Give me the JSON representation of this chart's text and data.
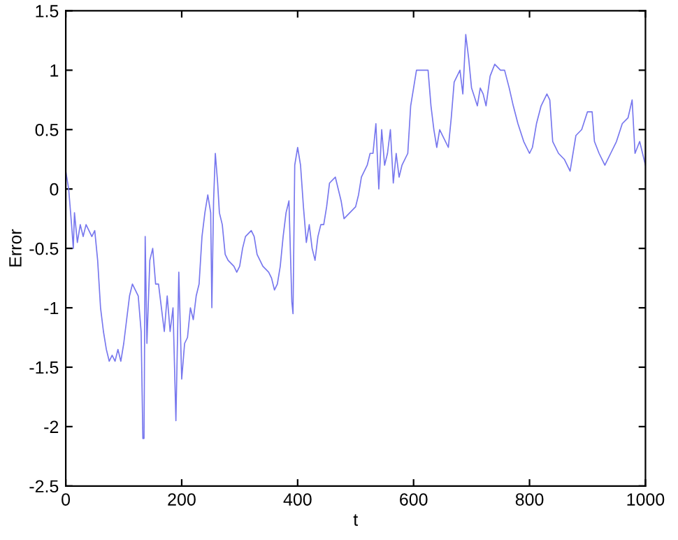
{
  "chart_data": {
    "type": "line",
    "xlabel": "t",
    "ylabel": "Error",
    "xlim": [
      0,
      1000
    ],
    "ylim": [
      -2.5,
      1.5
    ],
    "xticks": [
      0,
      200,
      400,
      600,
      800,
      1000
    ],
    "yticks": [
      -2.5,
      -2,
      -1.5,
      -1,
      -0.5,
      0,
      0.5,
      1,
      1.5
    ],
    "grid": false,
    "legend": false,
    "marker": "none",
    "line_style": "solid",
    "series": [
      {
        "color": "#7777ee",
        "x": [
          0,
          5,
          10,
          13,
          15,
          20,
          25,
          30,
          35,
          45,
          50,
          55,
          60,
          65,
          70,
          75,
          80,
          85,
          90,
          95,
          100,
          105,
          110,
          115,
          120,
          125,
          130,
          133,
          135,
          137,
          140,
          145,
          150,
          155,
          160,
          165,
          170,
          175,
          180,
          185,
          190,
          195,
          200,
          205,
          210,
          215,
          220,
          225,
          230,
          235,
          240,
          245,
          250,
          252,
          255,
          258,
          262,
          265,
          270,
          275,
          280,
          290,
          295,
          300,
          305,
          310,
          320,
          325,
          330,
          340,
          350,
          355,
          360,
          365,
          370,
          375,
          380,
          385,
          390,
          392,
          395,
          400,
          405,
          410,
          415,
          420,
          425,
          430,
          435,
          440,
          445,
          450,
          455,
          465,
          470,
          475,
          480,
          490,
          500,
          505,
          510,
          520,
          525,
          530,
          535,
          540,
          545,
          550,
          555,
          560,
          565,
          570,
          575,
          580,
          590,
          595,
          600,
          605,
          615,
          625,
          630,
          635,
          640,
          645,
          650,
          660,
          665,
          670,
          680,
          685,
          690,
          695,
          700,
          710,
          715,
          720,
          725,
          732,
          740,
          750,
          757,
          765,
          772,
          780,
          790,
          800,
          805,
          812,
          820,
          830,
          835,
          840,
          850,
          860,
          870,
          880,
          890,
          900,
          908,
          912,
          920,
          930,
          940,
          950,
          960,
          970,
          977,
          982,
          990,
          1000
        ],
        "values": [
          0.15,
          0.0,
          -0.3,
          -0.5,
          -0.2,
          -0.45,
          -0.3,
          -0.4,
          -0.3,
          -0.4,
          -0.35,
          -0.6,
          -1.0,
          -1.2,
          -1.35,
          -1.45,
          -1.4,
          -1.45,
          -1.35,
          -1.45,
          -1.3,
          -1.1,
          -0.9,
          -0.8,
          -0.85,
          -0.9,
          -1.2,
          -2.1,
          -2.1,
          -0.4,
          -1.3,
          -0.6,
          -0.5,
          -0.8,
          -0.8,
          -1.0,
          -1.2,
          -0.9,
          -1.2,
          -1.0,
          -1.95,
          -0.7,
          -1.6,
          -1.3,
          -1.25,
          -1.0,
          -1.1,
          -0.9,
          -0.8,
          -0.4,
          -0.2,
          -0.05,
          -0.2,
          -1.0,
          -0.1,
          0.3,
          0.05,
          -0.2,
          -0.3,
          -0.55,
          -0.6,
          -0.65,
          -0.7,
          -0.65,
          -0.5,
          -0.4,
          -0.35,
          -0.4,
          -0.55,
          -0.65,
          -0.7,
          -0.75,
          -0.85,
          -0.8,
          -0.65,
          -0.4,
          -0.2,
          -0.1,
          -0.95,
          -1.05,
          0.2,
          0.35,
          0.2,
          -0.15,
          -0.45,
          -0.3,
          -0.5,
          -0.6,
          -0.4,
          -0.3,
          -0.3,
          -0.15,
          0.05,
          0.1,
          0.0,
          -0.1,
          -0.25,
          -0.2,
          -0.15,
          -0.05,
          0.1,
          0.2,
          0.3,
          0.3,
          0.55,
          0.0,
          0.5,
          0.2,
          0.3,
          0.5,
          0.05,
          0.3,
          0.1,
          0.2,
          0.3,
          0.7,
          0.85,
          1.0,
          1.0,
          1.0,
          0.7,
          0.5,
          0.35,
          0.5,
          0.45,
          0.35,
          0.6,
          0.9,
          1.0,
          0.8,
          1.3,
          1.1,
          0.85,
          0.7,
          0.85,
          0.8,
          0.7,
          0.95,
          1.05,
          1.0,
          1.0,
          0.85,
          0.7,
          0.55,
          0.4,
          0.3,
          0.35,
          0.55,
          0.7,
          0.8,
          0.75,
          0.4,
          0.3,
          0.25,
          0.15,
          0.45,
          0.5,
          0.65,
          0.65,
          0.4,
          0.3,
          0.2,
          0.3,
          0.4,
          0.55,
          0.6,
          0.75,
          0.3,
          0.4,
          0.2
        ]
      }
    ]
  }
}
